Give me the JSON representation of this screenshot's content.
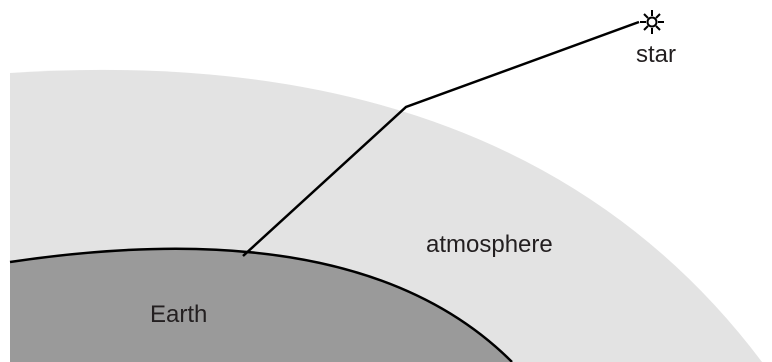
{
  "labels": {
    "star": "star",
    "atmosphere": "atmosphere",
    "earth": "Earth"
  },
  "colors": {
    "background": "#ffffff",
    "atmosphere": "#e3e3e3",
    "earth": "#9a9a9a",
    "line": "#000000"
  },
  "icons": {
    "star": "star-icon"
  }
}
